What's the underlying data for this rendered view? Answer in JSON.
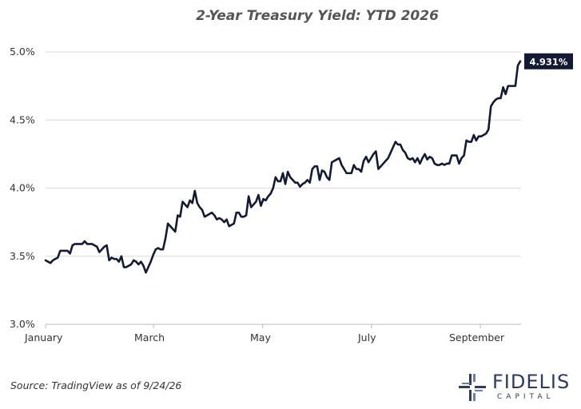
{
  "chart_data": {
    "type": "line",
    "title": "2-Year Treasury Yield: YTD 2026",
    "xlabel": "",
    "ylabel": "",
    "ylim": [
      3.0,
      5.0
    ],
    "yticks": [
      "3.0%",
      "3.5%",
      "4.0%",
      "4.5%",
      "5.0%"
    ],
    "ytick_values": [
      3.0,
      3.5,
      4.0,
      4.5,
      5.0
    ],
    "xticks": [
      "January",
      "March",
      "May",
      "July",
      "September"
    ],
    "grid": "horizontal",
    "last_value_label": "4.931%",
    "line_color": "#131a33",
    "series": [
      {
        "values": [
          3.47,
          3.46,
          3.45,
          3.47,
          3.48,
          3.49,
          3.54,
          3.54,
          3.54,
          3.54,
          3.52,
          3.58,
          3.59,
          3.59,
          3.59,
          3.59,
          3.61,
          3.59,
          3.59,
          3.59,
          3.58,
          3.57,
          3.53,
          3.55,
          3.57,
          3.58,
          3.47,
          3.49,
          3.48,
          3.48,
          3.46,
          3.5,
          3.42,
          3.42,
          3.43,
          3.44,
          3.47,
          3.46,
          3.44,
          3.46,
          3.43,
          3.38,
          3.42,
          3.46,
          3.51,
          3.55,
          3.56,
          3.55,
          3.55,
          3.63,
          3.74,
          3.72,
          3.7,
          3.68,
          3.8,
          3.79,
          3.9,
          3.88,
          3.86,
          3.91,
          3.89,
          3.98,
          3.89,
          3.86,
          3.84,
          3.79,
          3.8,
          3.81,
          3.82,
          3.8,
          3.77,
          3.78,
          3.77,
          3.75,
          3.77,
          3.72,
          3.73,
          3.74,
          3.82,
          3.82,
          3.79,
          3.79,
          3.8,
          3.94,
          3.86,
          3.88,
          3.9,
          3.95,
          3.87,
          3.92,
          3.91,
          3.94,
          3.96,
          4.0,
          4.08,
          4.05,
          4.05,
          4.11,
          4.03,
          4.12,
          4.08,
          4.06,
          4.04,
          4.04,
          4.01,
          4.03,
          4.04,
          4.06,
          4.04,
          4.14,
          4.16,
          4.16,
          4.06,
          4.13,
          4.12,
          4.08,
          4.06,
          4.19,
          4.2,
          4.21,
          4.22,
          4.17,
          4.14,
          4.11,
          4.11,
          4.11,
          4.17,
          4.14,
          4.14,
          4.12,
          4.2,
          4.23,
          4.19,
          4.22,
          4.25,
          4.27,
          4.14,
          4.16,
          4.18,
          4.2,
          4.22,
          4.26,
          4.3,
          4.34,
          4.32,
          4.32,
          4.28,
          4.26,
          4.22,
          4.21,
          4.22,
          4.19,
          4.22,
          4.18,
          4.22,
          4.25,
          4.21,
          4.23,
          4.22,
          4.18,
          4.17,
          4.17,
          4.18,
          4.17,
          4.18,
          4.18,
          4.24,
          4.24,
          4.24,
          4.18,
          4.22,
          4.24,
          4.35,
          4.34,
          4.34,
          4.39,
          4.35,
          4.38,
          4.38,
          4.39,
          4.4,
          4.43,
          4.6,
          4.63,
          4.65,
          4.66,
          4.66,
          4.74,
          4.69,
          4.75,
          4.75,
          4.75,
          4.75,
          4.9,
          4.931
        ]
      }
    ]
  },
  "footer": {
    "source": "Source: TradingView as of 9/24/26"
  },
  "logo": {
    "name": "FIDELIS",
    "sub": "CAPITAL",
    "color": "#2b3a67"
  }
}
